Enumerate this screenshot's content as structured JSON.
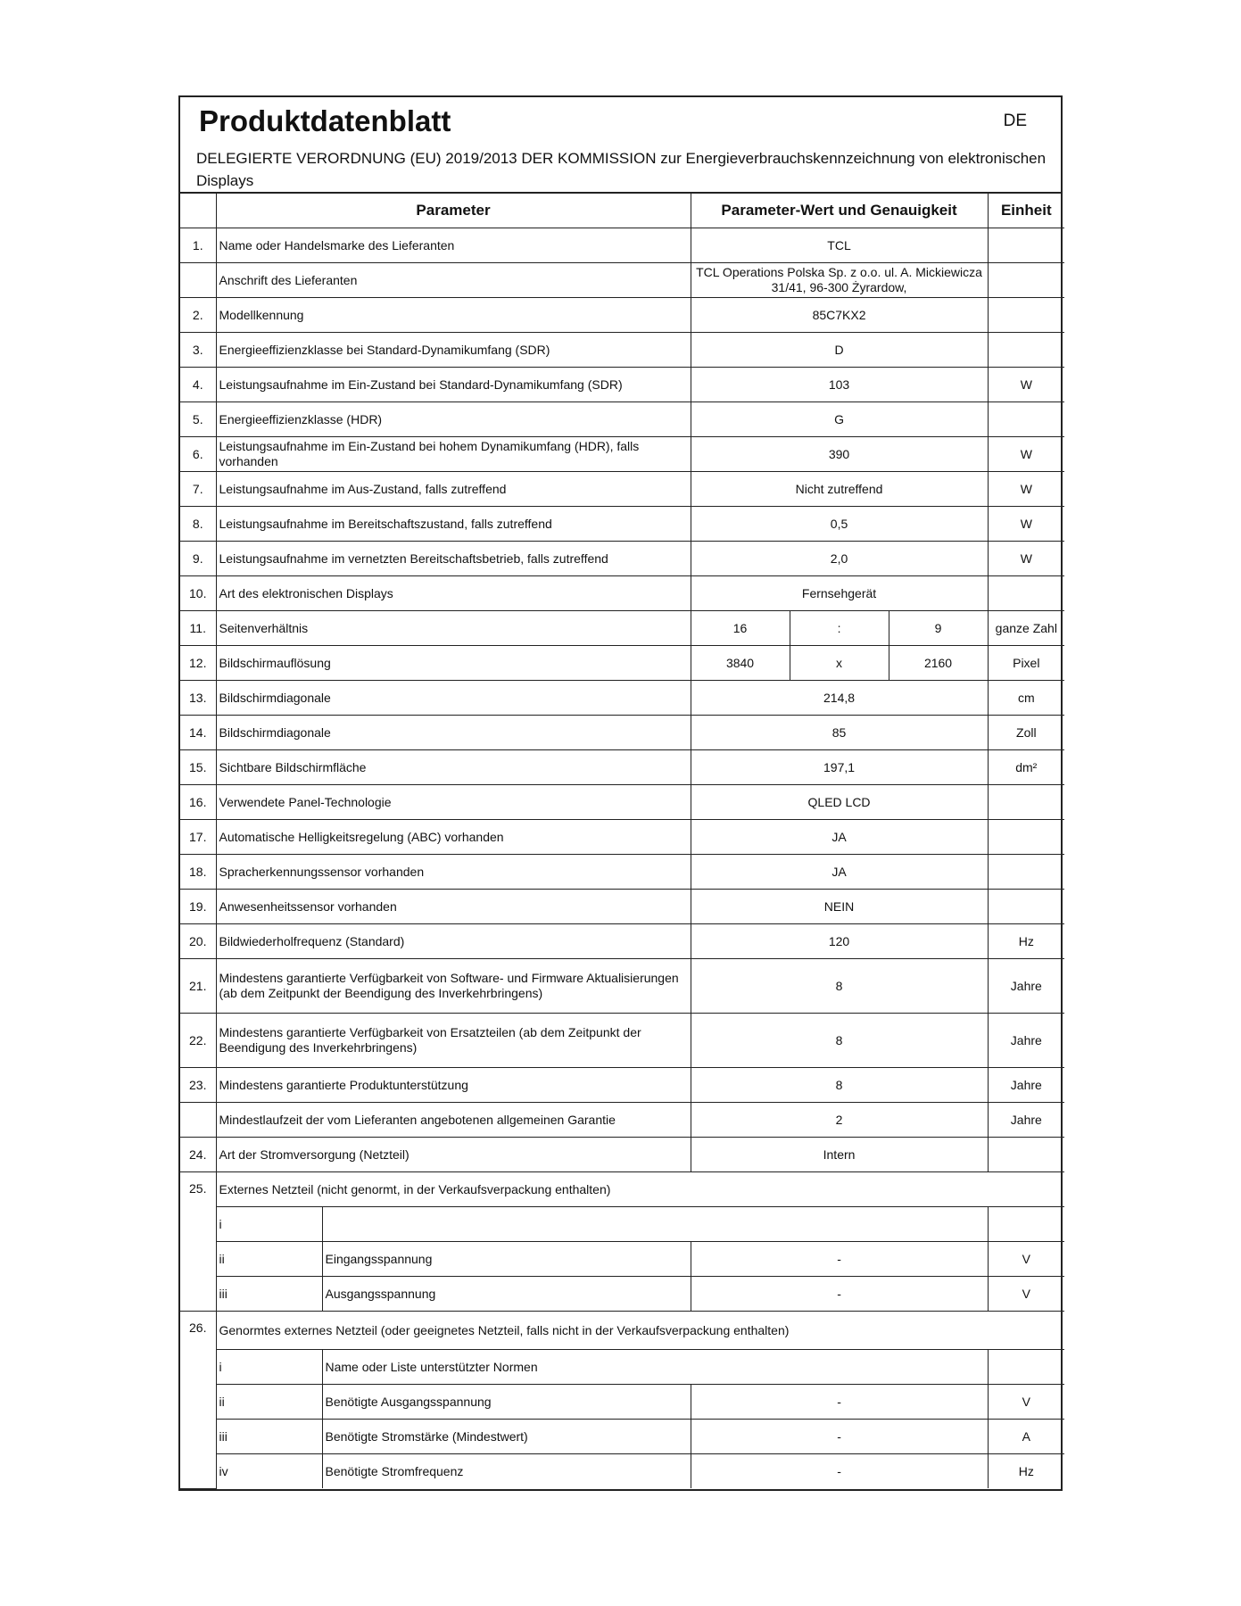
{
  "header": {
    "title": "Produktdatenblatt",
    "lang": "DE",
    "subtitle": "DELEGIERTE VERORDNUNG (EU) 2019/2013 DER KOMMISSION zur Energieverbrauchskennzeichnung von elektronischen Displays"
  },
  "columns": {
    "parameter": "Parameter",
    "value": "Parameter-Wert und Genauigkeit",
    "unit": "Einheit"
  },
  "rows": [
    {
      "num": "1.",
      "param": "Name oder Handelsmarke des Lieferanten",
      "value": "TCL",
      "unit": ""
    },
    {
      "num": "",
      "param": "Anschrift des Lieferanten",
      "value": "TCL Operations Polska Sp. z o.o. ul. A. Mickiewicza 31/41, 96-300 Żyrardow,",
      "unit": ""
    },
    {
      "num": "2.",
      "param": "Modellkennung",
      "value": "85C7KX2",
      "unit": ""
    },
    {
      "num": "3.",
      "param": "Energieeffizienzklasse bei Standard-Dynamikumfang (SDR)",
      "value": "D",
      "unit": ""
    },
    {
      "num": "4.",
      "param": "Leistungsaufnahme im Ein-Zustand bei Standard-Dynamikumfang (SDR)",
      "value": "103",
      "unit": "W"
    },
    {
      "num": "5.",
      "param": "Energieeffizienzklasse (HDR)",
      "value": "G",
      "unit": ""
    },
    {
      "num": "6.",
      "param": "Leistungsaufnahme im Ein-Zustand bei hohem Dynamikumfang (HDR), falls vorhanden",
      "value": "390",
      "unit": "W"
    },
    {
      "num": "7.",
      "param": "Leistungsaufnahme im Aus-Zustand, falls zutreffend",
      "value": "Nicht zutreffend",
      "unit": "W"
    },
    {
      "num": "8.",
      "param": "Leistungsaufnahme im Bereitschaftszustand, falls zutreffend",
      "value": "0,5",
      "unit": "W"
    },
    {
      "num": "9.",
      "param": "Leistungsaufnahme im vernetzten Bereitschaftsbetrieb, falls zutreffend",
      "value": "2,0",
      "unit": "W"
    },
    {
      "num": "10.",
      "param": "Art des elektronischen Displays",
      "value": "Fernsehgerät",
      "unit": ""
    }
  ],
  "split_rows": [
    {
      "num": "11.",
      "param": "Seitenverhältnis",
      "v1": "16",
      "v2": ":",
      "v3": "9",
      "unit": "ganze Zahl"
    },
    {
      "num": "12.",
      "param": "Bildschirmauflösung",
      "v1": "3840",
      "v2": "x",
      "v3": "2160",
      "unit": "Pixel"
    }
  ],
  "rows2": [
    {
      "num": "13.",
      "param": "Bildschirmdiagonale",
      "value": "214,8",
      "unit": "cm"
    },
    {
      "num": "14.",
      "param": "Bildschirmdiagonale",
      "value": "85",
      "unit": "Zoll"
    },
    {
      "num": "15.",
      "param": "Sichtbare Bildschirmfläche",
      "value": "197,1",
      "unit": "dm²"
    },
    {
      "num": "16.",
      "param": "Verwendete Panel-Technologie",
      "value": "QLED LCD",
      "unit": ""
    },
    {
      "num": "17.",
      "param": "Automatische Helligkeitsregelung (ABC) vorhanden",
      "value": "JA",
      "unit": ""
    },
    {
      "num": "18.",
      "param": "Spracherkennungssensor vorhanden",
      "value": "JA",
      "unit": ""
    },
    {
      "num": "19.",
      "param": "Anwesenheitssensor vorhanden",
      "value": "NEIN",
      "unit": ""
    },
    {
      "num": "20.",
      "param": "Bildwiederholfrequenz (Standard)",
      "value": "120",
      "unit": "Hz"
    },
    {
      "num": "21.",
      "param": "Mindestens garantierte Verfügbarkeit von Software- und Firmware Aktualisierungen (ab dem Zeitpunkt der Beendigung des Inverkehrbringens)",
      "value": "8",
      "unit": "Jahre"
    },
    {
      "num": "22.",
      "param": "Mindestens garantierte Verfügbarkeit von Ersatzteilen (ab dem Zeitpunkt der Beendigung des Inverkehrbringens)",
      "value": "8",
      "unit": "Jahre"
    },
    {
      "num": "23.",
      "param": "Mindestens garantierte Produktunterstützung",
      "value": "8",
      "unit": "Jahre"
    },
    {
      "num": "",
      "param": "Mindestlaufzeit der vom Lieferanten angebotenen allgemeinen Garantie",
      "value": "2",
      "unit": "Jahre"
    },
    {
      "num": "24.",
      "param": "Art der Stromversorgung (Netzteil)",
      "value": "Intern",
      "unit": ""
    }
  ],
  "g25": {
    "num": "25.",
    "title": "Externes Netzteil (nicht genormt, in der Verkaufsverpackung enthalten)",
    "i": {
      "sub": "i"
    },
    "ii": {
      "sub": "ii",
      "param": "Eingangsspannung",
      "value": "-",
      "unit": "V"
    },
    "iii": {
      "sub": "iii",
      "param": "Ausgangsspannung",
      "value": "-",
      "unit": "V"
    }
  },
  "g26": {
    "num": "26.",
    "title": "Genormtes externes Netzteil (oder geeignetes Netzteil, falls nicht in der Verkaufsverpackung enthalten)",
    "i": {
      "sub": "i",
      "param": "Name oder Liste unterstützter Normen"
    },
    "ii": {
      "sub": "ii",
      "param": "Benötigte Ausgangsspannung",
      "value": "-",
      "unit": "V"
    },
    "iii": {
      "sub": "iii",
      "param": "Benötigte Stromstärke (Mindestwert)",
      "value": "-",
      "unit": "A"
    },
    "iv": {
      "sub": "iv",
      "param": "Benötigte Stromfrequenz",
      "value": "-",
      "unit": "Hz"
    }
  }
}
